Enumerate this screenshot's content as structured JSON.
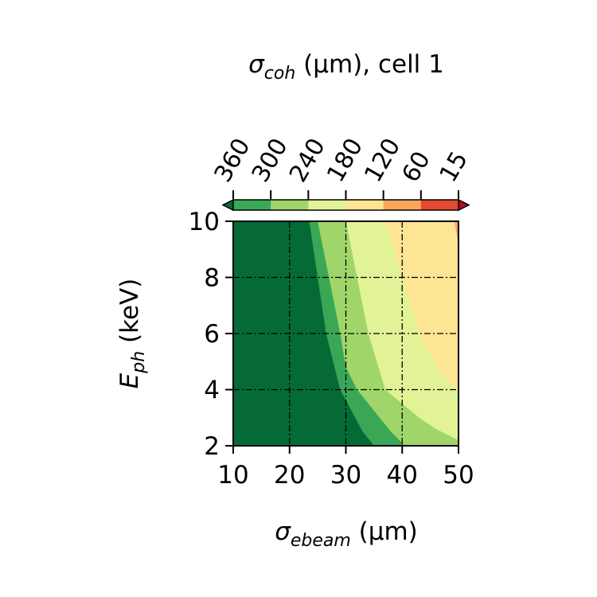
{
  "chart_data": {
    "type": "heatmap",
    "subtype": "filled-contour",
    "title": {
      "symbol": "σ",
      "subscript": "coh",
      "rest": " (μm),  cell 1"
    },
    "xlabel": {
      "symbol": "σ",
      "subscript": "ebeam",
      "rest": " (μm)"
    },
    "ylabel": {
      "symbol": "E",
      "subscript": "ph",
      "rest": " (keV)"
    },
    "xlim": [
      10,
      50
    ],
    "ylim": [
      2,
      10
    ],
    "xticks": [
      "10",
      "20",
      "30",
      "40",
      "50"
    ],
    "yticks": [
      "2",
      "4",
      "6",
      "8",
      "10"
    ],
    "grid": true,
    "colorbar": {
      "position": "top",
      "extend": "both",
      "ticks": [
        "360",
        "300",
        "240",
        "180",
        "120",
        "60",
        "15"
      ],
      "bands": [
        {
          "from": 360,
          "to": 300,
          "color": "#3aa757"
        },
        {
          "from": 300,
          "to": 240,
          "color": "#a0d669"
        },
        {
          "from": 240,
          "to": 180,
          "color": "#e2f397"
        },
        {
          "from": 180,
          "to": 120,
          "color": "#fee593"
        },
        {
          "from": 120,
          "to": 60,
          "color": "#f9a55c"
        },
        {
          "from": 60,
          "to": 15,
          "color": "#e34933"
        }
      ],
      "under_color": "#066a36",
      "over_color": "#b60d26"
    },
    "regions": [
      {
        "level": ">360",
        "color": "#066a36",
        "boundary": []
      },
      {
        "level": "300-360",
        "color": "#3aa757",
        "boundary": [
          [
            23.5,
            10
          ],
          [
            25,
            8
          ],
          [
            26.5,
            6
          ],
          [
            29,
            4
          ],
          [
            33,
            2.5
          ],
          [
            35,
            2
          ]
        ]
      },
      {
        "level": "240-300",
        "color": "#a0d669",
        "boundary": [
          [
            25,
            10
          ],
          [
            27,
            8
          ],
          [
            29,
            6
          ],
          [
            30,
            4.8
          ],
          [
            32,
            4
          ],
          [
            38,
            2.5
          ],
          [
            40.5,
            2
          ]
        ]
      },
      {
        "level": "180-240",
        "color": "#e2f397",
        "boundary": [
          [
            30,
            10
          ],
          [
            32,
            8
          ],
          [
            34,
            6
          ],
          [
            37,
            4
          ],
          [
            43,
            3
          ],
          [
            46,
            2.6
          ],
          [
            50,
            2.2
          ]
        ]
      },
      {
        "level": "120-180",
        "color": "#fee593",
        "boundary": [
          [
            37,
            10
          ],
          [
            40,
            8
          ],
          [
            43,
            6
          ],
          [
            47,
            4.5
          ],
          [
            50,
            4
          ]
        ]
      },
      {
        "level": "60-120",
        "color": "#f9a55c",
        "boundary": [
          [
            49.3,
            10
          ],
          [
            50,
            9.1
          ]
        ]
      }
    ]
  }
}
